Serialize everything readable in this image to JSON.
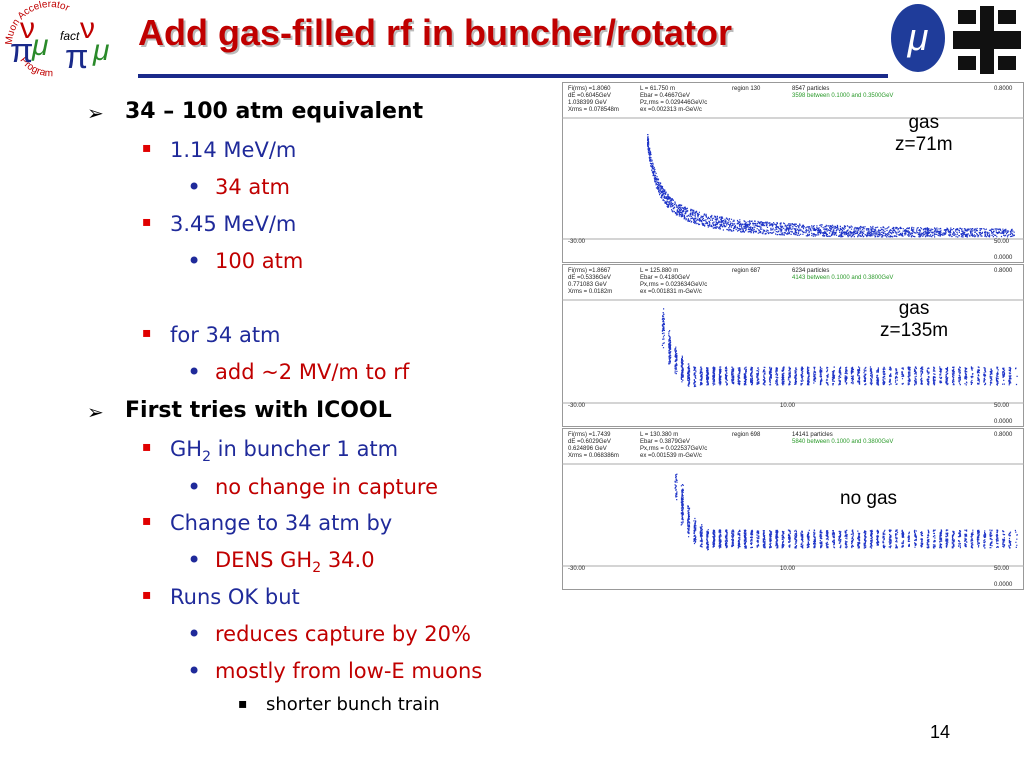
{
  "logo": {
    "top": "Muon Accelerator",
    "bottom": "Program",
    "middle": "fact"
  },
  "header": {
    "title": "Add gas-filled rf in buncher/rotator"
  },
  "outline": [
    {
      "text": [
        "34 – 100 atm equivalent"
      ],
      "children": [
        {
          "text": [
            "1.14 MeV/m"
          ],
          "children": [
            {
              "text": [
                "34 atm"
              ]
            }
          ]
        },
        {
          "text": [
            "3.45 MeV/m"
          ],
          "children": [
            {
              "text": [
                "100 atm"
              ]
            }
          ]
        },
        {
          "text": [
            "for 34 atm"
          ],
          "children": [
            {
              "text": [
                "add ~2 MV/m to rf"
              ]
            }
          ]
        }
      ]
    },
    {
      "text": [
        "First tries with ICOOL"
      ],
      "children": [
        {
          "text": [
            "GH",
            "2",
            " in buncher 1 atm"
          ],
          "children": [
            {
              "text": [
                "no change in capture"
              ]
            }
          ]
        },
        {
          "text": [
            "Change to 34 atm by"
          ],
          "children": [
            {
              "text": [
                "DENS GH",
                "2",
                " 34.0"
              ]
            }
          ]
        },
        {
          "text": [
            "Runs OK but"
          ],
          "children": [
            {
              "text": [
                "reduces capture by 20%"
              ]
            },
            {
              "text": [
                "mostly from low-E muons"
              ],
              "children": [
                {
                  "text": [
                    "shorter bunch train"
                  ]
                }
              ]
            }
          ]
        }
      ]
    }
  ],
  "plots": [
    {
      "label": [
        "gas",
        "z=71m"
      ],
      "header": [
        [
          "Fi(rms) =1.8060",
          "L = 61.750 m",
          "region 130",
          "8547 particles",
          "0.8000"
        ],
        [
          "dE =0.6045GeV",
          "Ebar = 0.4667GeV",
          "3598 between 0.1000 and 0.3500GeV"
        ],
        [
          "1.038399 GeV",
          "Pz,rms = 0.029446GeV/c"
        ],
        [
          "Xrms = 0.078548m",
          "ex =0.002313 m-GeV/c"
        ]
      ],
      "footer": [
        "-30.00",
        "50.00",
        "0.0000"
      ]
    },
    {
      "label": [
        "gas",
        "z=135m"
      ],
      "header": [
        [
          "Fi(rms) =1.8667",
          "L = 125.880 m",
          "region 687",
          "6234 particles",
          "0.8000"
        ],
        [
          "dE =0.5336GeV",
          "Ebar = 0.4180GeV",
          "4143 between 0.1000 and 0.3800GeV"
        ],
        [
          "0.771083 GeV",
          "Px,rms = 0.023634GeV/c"
        ],
        [
          "Xrms = 0.0182m",
          "ex =0.001831 m-GeV/c"
        ]
      ],
      "footer": [
        "-30.00",
        "10.00",
        "50.00",
        "0.0000"
      ]
    },
    {
      "label": [
        "no gas"
      ],
      "header": [
        [
          "Fi(rms) =1.7439",
          "L = 130.380 m",
          "region 698",
          "14141 particles",
          "0.8000"
        ],
        [
          "dE =0.6029GeV",
          "Ebar = 0.3879GeV",
          "5840 between 0.1000 and 0.3800GeV"
        ],
        [
          "0.624896 GeV",
          "Px,rms = 0.022537GeV/c"
        ],
        [
          "Xrms = 0.068386m",
          "ex =0.001539 m-GeV/c"
        ]
      ],
      "footer": [
        "-30.00",
        "10.00",
        "50.00",
        "0.0000"
      ]
    }
  ],
  "footer": {
    "page": "14"
  }
}
